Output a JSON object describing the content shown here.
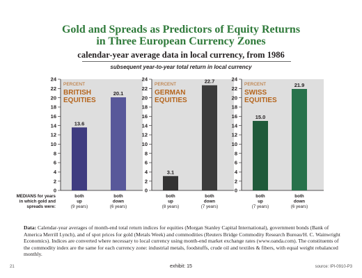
{
  "title_line1": "Gold and Spreads as Predictors of Equity Returns",
  "title_line2": "in Three European Currency Zones",
  "subtitle": "calendar-year average data in local currency, from 1986",
  "caption": "subsequent year-to-year total return in local currency",
  "row_label_lines": [
    "MEDIANS for years",
    "in which gold and",
    "spreads were:"
  ],
  "chart_data": [
    {
      "type": "bar",
      "panel_label": "PERCENT",
      "title": "BRITISH EQUITIES",
      "categories": [
        "both up (9 years)",
        "both down (6 years)"
      ],
      "category_lines": [
        [
          "both",
          "up",
          "(9 years)"
        ],
        [
          "both",
          "down",
          "(6 years)"
        ]
      ],
      "values": [
        13.6,
        20.1
      ],
      "data_labels": [
        "13.6",
        "20.1"
      ],
      "ylim": [
        0,
        24
      ],
      "yticks": [
        0,
        2,
        4,
        6,
        8,
        10,
        12,
        14,
        16,
        18,
        20,
        22,
        24
      ],
      "bar_colors": [
        "#3f3c80",
        "#58589a"
      ]
    },
    {
      "type": "bar",
      "panel_label": "PERCENT",
      "title": "GERMAN EQUITIES",
      "categories": [
        "both up (8 years)",
        "both down (7 years)"
      ],
      "category_lines": [
        [
          "both",
          "up",
          "(8 years)"
        ],
        [
          "both",
          "down",
          "(7 years)"
        ]
      ],
      "values": [
        3.1,
        22.7
      ],
      "data_labels": [
        "3.1",
        "22.7"
      ],
      "ylim": [
        0,
        24
      ],
      "yticks": [
        0,
        2,
        4,
        6,
        8,
        10,
        12,
        14,
        16,
        18,
        20,
        22,
        24
      ],
      "bar_colors": [
        "#333333",
        "#3b3b3b"
      ]
    },
    {
      "type": "bar",
      "panel_label": "PERCENT",
      "title": "SWISS EQUITIES",
      "categories": [
        "both up (7 years)",
        "both down (6 years)"
      ],
      "category_lines": [
        [
          "both",
          "up",
          "(7 years)"
        ],
        [
          "both",
          "down",
          "(6 years)"
        ]
      ],
      "values": [
        15.0,
        21.9
      ],
      "data_labels": [
        "15.0",
        "21.9"
      ],
      "ylim": [
        0,
        24
      ],
      "yticks": [
        0,
        2,
        4,
        6,
        8,
        10,
        12,
        14,
        16,
        18,
        20,
        22,
        24
      ],
      "bar_colors": [
        "#1f5a3a",
        "#27724b"
      ]
    }
  ],
  "colors": {
    "title_green": "#2f7a3a",
    "panel_title": "#b5651d",
    "panel_bg": "#dedede"
  },
  "footnote_label": "Data:",
  "footnote_text": "Calendar-year averages of month-end total return indices for equities (Morgan Stanley Capital International), government bonds (Bank of America Merrill Lynch), and of spot prices for gold (Metals Week) and commodities (Reuters Bridge Commodity Research Bureau/H. C. Wainwright Economics). Indices are converted where necessary to local currency using month-end market exchange rates (www.oanda.com). The constituents of the commodity index are the same for each currency zone: industrial metals, foodstuffs, crude oil and textiles & fibers, with equal weight rebalanced monthly.",
  "page_number": "21",
  "exhibit": "exhibit: 15",
  "source": "source: IPI-0910-P3"
}
